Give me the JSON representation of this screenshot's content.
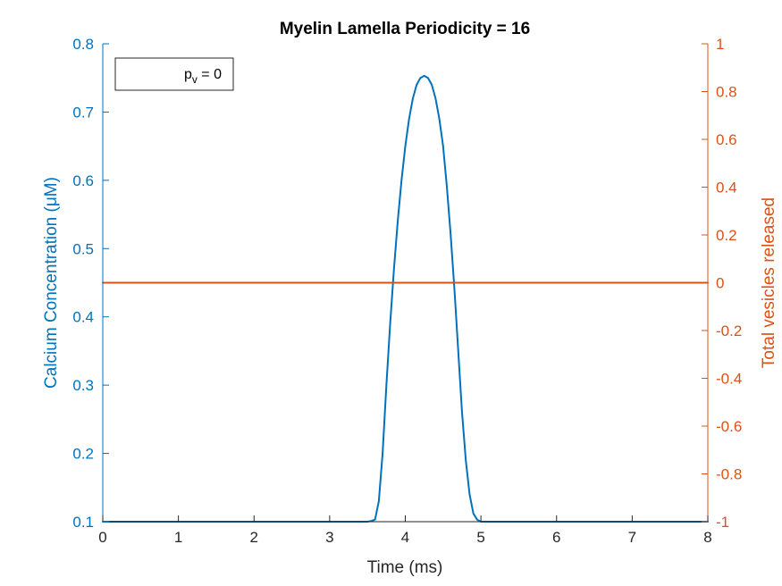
{
  "chart_data": {
    "type": "line",
    "title": "Myelin Lamella Periodicity = 16",
    "xlabel": "Time (ms)",
    "ylabel_left": "Calcium Concentration (μM)",
    "ylabel_right": "Total vesicles released",
    "xlim": [
      0,
      8
    ],
    "ylim_left": [
      0.1,
      0.8
    ],
    "ylim_right": [
      -1,
      1
    ],
    "x_ticks": [
      "0",
      "1",
      "2",
      "3",
      "4",
      "5",
      "6",
      "7",
      "8"
    ],
    "y_left_ticks": [
      "0.1",
      "0.2",
      "0.3",
      "0.4",
      "0.5",
      "0.6",
      "0.7",
      "0.8"
    ],
    "y_right_ticks": [
      "-1",
      "-0.8",
      "-0.6",
      "-0.4",
      "-0.2",
      "0",
      "0.2",
      "0.4",
      "0.6",
      "0.8",
      "1"
    ],
    "legend": {
      "label": "p",
      "subscript": "v",
      "suffix": " = 0",
      "location": "top-left"
    },
    "colors": {
      "left": "#0072bd",
      "right": "#d95319",
      "axis": "#262626"
    },
    "series": [
      {
        "name": "Calcium Concentration",
        "axis": "left",
        "color": "#0072bd",
        "x": [
          0,
          3.5,
          3.55,
          3.6,
          3.65,
          3.7,
          3.75,
          3.8,
          3.85,
          3.9,
          3.95,
          4.0,
          4.05,
          4.1,
          4.15,
          4.2,
          4.25,
          4.3,
          4.35,
          4.4,
          4.45,
          4.5,
          4.55,
          4.6,
          4.65,
          4.7,
          4.75,
          4.8,
          4.85,
          4.9,
          4.95,
          5.0,
          8
        ],
        "values": [
          0.1,
          0.1,
          0.101,
          0.103,
          0.13,
          0.2,
          0.3,
          0.39,
          0.47,
          0.54,
          0.6,
          0.65,
          0.69,
          0.72,
          0.74,
          0.75,
          0.753,
          0.75,
          0.74,
          0.72,
          0.69,
          0.65,
          0.59,
          0.52,
          0.44,
          0.35,
          0.26,
          0.19,
          0.14,
          0.112,
          0.103,
          0.1,
          0.1
        ]
      },
      {
        "name": "Total vesicles released",
        "axis": "right",
        "color": "#d95319",
        "x": [
          0,
          8
        ],
        "values": [
          0,
          0
        ]
      }
    ]
  }
}
